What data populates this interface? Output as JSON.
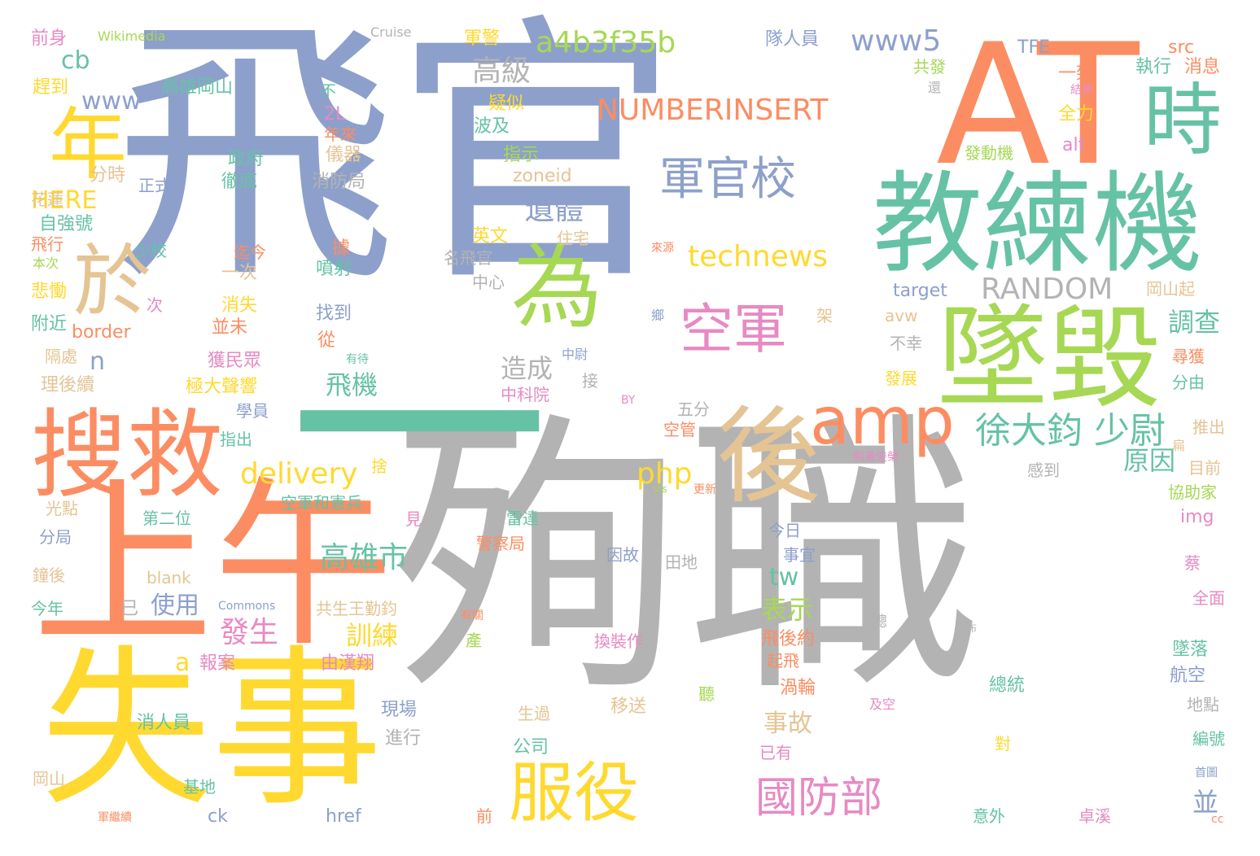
{
  "palette": {
    "gray": "#b3b3b3",
    "blue": "#8da0cb",
    "green": "#a6d854",
    "orange": "#fc8d62",
    "yellow": "#ffd92f",
    "teal": "#66c2a5",
    "pink": "#e78ac3",
    "tan": "#e5c494"
  },
  "words": [
    {
      "text": "殉職",
      "color": "#b3b3b3"
    },
    {
      "text": "飛官",
      "color": "#8da0cb"
    },
    {
      "text": "失事",
      "color": "#ffd92f"
    },
    {
      "text": "上午",
      "color": "#fc8d62"
    },
    {
      "text": "一",
      "color": "#66c2a5"
    },
    {
      "text": "AT",
      "color": "#fc8d62"
    },
    {
      "text": "教練機",
      "color": "#66c2a5"
    },
    {
      "text": "墜毀",
      "color": "#a6d854"
    },
    {
      "text": "搜救",
      "color": "#fc8d62"
    },
    {
      "text": "為",
      "color": "#a6d854"
    },
    {
      "text": "後",
      "color": "#e5c494"
    },
    {
      "text": "時",
      "color": "#66c2a5"
    },
    {
      "text": "年",
      "color": "#ffd92f"
    },
    {
      "text": "於",
      "color": "#e5c494"
    },
    {
      "text": "amp",
      "color": "#fc8d62"
    },
    {
      "text": "服役",
      "color": "#ffd92f"
    },
    {
      "text": "空軍",
      "color": "#e78ac3"
    },
    {
      "text": "軍官校",
      "color": "#8da0cb"
    },
    {
      "text": "國防部",
      "color": "#e78ac3"
    },
    {
      "text": "徐大鈞 少尉",
      "color": "#66c2a5"
    },
    {
      "text": "a4b3f35b",
      "color": "#a6d854"
    },
    {
      "text": "NUMBERINSERT",
      "color": "#fc8d62"
    },
    {
      "text": "technews",
      "color": "#ffd92f"
    },
    {
      "text": "RANDOM",
      "color": "#b3b3b3"
    },
    {
      "text": "www5",
      "color": "#8da0cb"
    },
    {
      "text": "高級",
      "color": "#b3b3b3"
    },
    {
      "text": "遺體",
      "color": "#8da0cb"
    },
    {
      "text": "delivery",
      "color": "#ffd92f"
    },
    {
      "text": "php",
      "color": "#ffd92f"
    },
    {
      "text": "高雄市",
      "color": "#66c2a5"
    },
    {
      "text": "造成",
      "color": "#b3b3b3"
    },
    {
      "text": "飛機",
      "color": "#66c2a5"
    },
    {
      "text": "調查",
      "color": "#66c2a5"
    },
    {
      "text": "原因",
      "color": "#66c2a5"
    },
    {
      "text": "www",
      "color": "#8da0cb"
    },
    {
      "text": "cb",
      "color": "#66c2a5"
    },
    {
      "text": "HERE",
      "color": "#ffd92f"
    },
    {
      "text": "n",
      "color": "#8da0cb"
    },
    {
      "text": "使用",
      "color": "#8da0cb"
    },
    {
      "text": "發生",
      "color": "#e78ac3"
    },
    {
      "text": "訓練",
      "color": "#ffd92f"
    },
    {
      "text": "表示",
      "color": "#a6d854"
    },
    {
      "text": "tw",
      "color": "#66c2a5"
    },
    {
      "text": "事故",
      "color": "#e5c494"
    },
    {
      "text": "a",
      "color": "#ffd92f"
    },
    {
      "text": "並",
      "color": "#8da0cb"
    },
    {
      "text": "TFE",
      "color": "#8da0cb"
    },
    {
      "text": "src",
      "color": "#fc8d62"
    },
    {
      "text": "消息",
      "color": "#fc8d62"
    },
    {
      "text": "執行",
      "color": "#66c2a5"
    },
    {
      "text": "一架",
      "color": "#fc8d62"
    },
    {
      "text": "全力",
      "color": "#ffd92f"
    },
    {
      "text": "alt",
      "color": "#e78ac3"
    },
    {
      "text": "發動機",
      "color": "#a6d854"
    },
    {
      "text": "共發",
      "color": "#a6d854"
    },
    {
      "text": "還",
      "color": "#b3b3b3"
    },
    {
      "text": "結果",
      "color": "#e78ac3"
    },
    {
      "text": "隊人員",
      "color": "#8da0cb"
    },
    {
      "text": "Cruise",
      "color": "#b3b3b3"
    },
    {
      "text": "Wikimedia",
      "color": "#a6d854"
    },
    {
      "text": "前身",
      "color": "#e78ac3"
    },
    {
      "text": "趕到",
      "color": "#ffd92f"
    },
    {
      "text": "高雄岡山",
      "color": "#66c2a5"
    },
    {
      "text": "軍警",
      "color": "#ffd92f"
    },
    {
      "text": "疑似",
      "color": "#ffd92f"
    },
    {
      "text": "波及",
      "color": "#66c2a5"
    },
    {
      "text": "指示",
      "color": "#a6d854"
    },
    {
      "text": "zoneid",
      "color": "#e5c494"
    },
    {
      "text": "不",
      "color": "#66c2a5"
    },
    {
      "text": "2L",
      "color": "#e78ac3"
    },
    {
      "text": "年來",
      "color": "#fc8d62"
    },
    {
      "text": "儀器",
      "color": "#e5c494"
    },
    {
      "text": "政府",
      "color": "#66c2a5"
    },
    {
      "text": "徹底",
      "color": "#66c2a5"
    },
    {
      "text": "消防局",
      "color": "#b3b3b3"
    },
    {
      "text": "正式",
      "color": "#8da0cb"
    },
    {
      "text": "分時",
      "color": "#e5c494"
    },
    {
      "text": "花蓮",
      "color": "#e5c494"
    },
    {
      "text": "自強號",
      "color": "#66c2a5"
    },
    {
      "text": "飛行",
      "color": "#fc8d62"
    },
    {
      "text": "本次",
      "color": "#a6d854"
    },
    {
      "text": "少校",
      "color": "#66c2a5"
    },
    {
      "text": "悲慟",
      "color": "#ffd92f"
    },
    {
      "text": "次",
      "color": "#e78ac3"
    },
    {
      "text": "附近",
      "color": "#66c2a5"
    },
    {
      "text": "border",
      "color": "#fc8d62"
    },
    {
      "text": "隔處",
      "color": "#e5c494"
    },
    {
      "text": "理後續",
      "color": "#e5c494"
    },
    {
      "text": "迄今",
      "color": "#fc8d62"
    },
    {
      "text": "一次",
      "color": "#e5c494"
    },
    {
      "text": "消失",
      "color": "#ffd92f"
    },
    {
      "text": "並未",
      "color": "#fc8d62"
    },
    {
      "text": "獲民眾",
      "color": "#e78ac3"
    },
    {
      "text": "極大聲響",
      "color": "#ffd92f"
    },
    {
      "text": "據",
      "color": "#fc8d62"
    },
    {
      "text": "噴射",
      "color": "#66c2a5"
    },
    {
      "text": "找到",
      "color": "#8da0cb"
    },
    {
      "text": "從",
      "color": "#fc8d62"
    },
    {
      "text": "有待",
      "color": "#66c2a5"
    },
    {
      "text": "英文",
      "color": "#ffd92f"
    },
    {
      "text": "住宅",
      "color": "#e5c494"
    },
    {
      "text": "名飛官",
      "color": "#b3b3b3"
    },
    {
      "text": "中心",
      "color": "#b3b3b3"
    },
    {
      "text": "來源",
      "color": "#fc8d62"
    },
    {
      "text": "target",
      "color": "#8da0cb"
    },
    {
      "text": "avw",
      "color": "#e5c494"
    },
    {
      "text": "鄉",
      "color": "#8da0cb"
    },
    {
      "text": "架",
      "color": "#e5c494"
    },
    {
      "text": "不幸",
      "color": "#b3b3b3"
    },
    {
      "text": "發展",
      "color": "#ffd92f"
    },
    {
      "text": "中尉",
      "color": "#8da0cb"
    },
    {
      "text": "接",
      "color": "#b3b3b3"
    },
    {
      "text": "中科院",
      "color": "#e78ac3"
    },
    {
      "text": "岡山起",
      "color": "#e5c494"
    },
    {
      "text": "尋獲",
      "color": "#fc8d62"
    },
    {
      "text": "分由",
      "color": "#66c2a5"
    },
    {
      "text": "推出",
      "color": "#e5c494"
    },
    {
      "text": "扁",
      "color": "#e5c494"
    },
    {
      "text": "目前",
      "color": "#e5c494"
    },
    {
      "text": "協助家",
      "color": "#a6d854"
    },
    {
      "text": "img",
      "color": "#e78ac3"
    },
    {
      "text": "學員",
      "color": "#8da0cb"
    },
    {
      "text": "指出",
      "color": "#66c2a5"
    },
    {
      "text": "BY",
      "color": "#e78ac3"
    },
    {
      "text": "五分",
      "color": "#b3b3b3"
    },
    {
      "text": "空管",
      "color": "#fc8d62"
    },
    {
      "text": "捨",
      "color": "#ffd92f"
    },
    {
      "text": "和黃俊榮",
      "color": "#e78ac3"
    },
    {
      "text": "感到",
      "color": "#b3b3b3"
    },
    {
      "text": "光點",
      "color": "#e5c494"
    },
    {
      "text": "第二位",
      "color": "#66c2a5"
    },
    {
      "text": "空軍和憲兵",
      "color": "#66c2a5"
    },
    {
      "text": "見",
      "color": "#e78ac3"
    },
    {
      "text": "vis",
      "color": "#a6d854"
    },
    {
      "text": "更新",
      "color": "#fc8d62"
    },
    {
      "text": "雷達",
      "color": "#66c2a5"
    },
    {
      "text": "警察局",
      "color": "#fc8d62"
    },
    {
      "text": "分局",
      "color": "#8da0cb"
    },
    {
      "text": "鐘後",
      "color": "#e5c494"
    },
    {
      "text": "今年",
      "color": "#66c2a5"
    },
    {
      "text": "已",
      "color": "#b3b3b3"
    },
    {
      "text": "blank",
      "color": "#e5c494"
    },
    {
      "text": "Commons",
      "color": "#8da0cb"
    },
    {
      "text": "共生王勤鈞",
      "color": "#e5c494"
    },
    {
      "text": "因故",
      "color": "#8da0cb"
    },
    {
      "text": "今日",
      "color": "#8da0cb"
    },
    {
      "text": "事宜",
      "color": "#8da0cb"
    },
    {
      "text": "田地",
      "color": "#b3b3b3"
    },
    {
      "text": "蔡",
      "color": "#e78ac3"
    },
    {
      "text": "全面",
      "color": "#e78ac3"
    },
    {
      "text": "有關",
      "color": "#fc8d62"
    },
    {
      "text": "產",
      "color": "#a6d854"
    },
    {
      "text": "換裝作",
      "color": "#e78ac3"
    },
    {
      "text": "總",
      "color": "#b3b3b3"
    },
    {
      "text": "公布",
      "color": "#b3b3b3"
    },
    {
      "text": "報案",
      "color": "#e78ac3"
    },
    {
      "text": "由漢翔",
      "color": "#e78ac3"
    },
    {
      "text": "飛後約",
      "color": "#fc8d62"
    },
    {
      "text": "起飛",
      "color": "#fc8d62"
    },
    {
      "text": "墜落",
      "color": "#66c2a5"
    },
    {
      "text": "航空",
      "color": "#8da0cb"
    },
    {
      "text": "渦輪",
      "color": "#fc8d62"
    },
    {
      "text": "總統",
      "color": "#66c2a5"
    },
    {
      "text": "地點",
      "color": "#b3b3b3"
    },
    {
      "text": "消人員",
      "color": "#66c2a5"
    },
    {
      "text": "現場",
      "color": "#8da0cb"
    },
    {
      "text": "進行",
      "color": "#b3b3b3"
    },
    {
      "text": "聽",
      "color": "#a6d854"
    },
    {
      "text": "移送",
      "color": "#e5c494"
    },
    {
      "text": "生過",
      "color": "#e5c494"
    },
    {
      "text": "公司",
      "color": "#66c2a5"
    },
    {
      "text": "及空",
      "color": "#e78ac3"
    },
    {
      "text": "已有",
      "color": "#e78ac3"
    },
    {
      "text": "對",
      "color": "#ffd92f"
    },
    {
      "text": "編號",
      "color": "#66c2a5"
    },
    {
      "text": "首圖",
      "color": "#8da0cb"
    },
    {
      "text": "岡山",
      "color": "#e5c494"
    },
    {
      "text": "基地",
      "color": "#66c2a5"
    },
    {
      "text": "軍繼續",
      "color": "#fc8d62"
    },
    {
      "text": "ck",
      "color": "#8da0cb"
    },
    {
      "text": "href",
      "color": "#8da0cb"
    },
    {
      "text": "前",
      "color": "#fc8d62"
    },
    {
      "text": "意外",
      "color": "#66c2a5"
    },
    {
      "text": "卓溪",
      "color": "#e78ac3"
    },
    {
      "text": "cc",
      "color": "#fc8d62"
    }
  ]
}
